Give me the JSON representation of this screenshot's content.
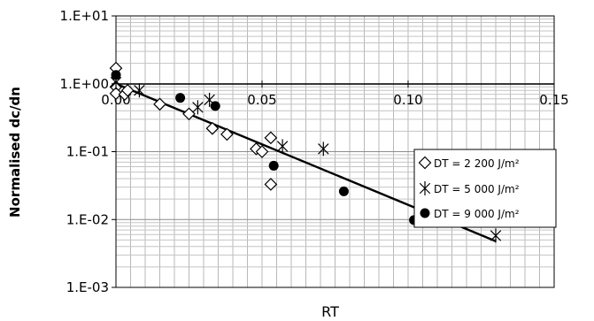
{
  "chart_data": {
    "type": "scatter",
    "xlabel": "RT",
    "ylabel": "Normalised dc/dn",
    "xlim": [
      0,
      0.15
    ],
    "ylim": [
      0.001,
      10
    ],
    "yscale": "log",
    "x_ticks": [
      "0.00",
      "0.05",
      "0.10",
      "0.15"
    ],
    "y_ticks": [
      "1.E+01",
      "1.E+00",
      "1.E-01",
      "1.E-02",
      "1.E-03"
    ],
    "grid": true,
    "legend_position": "right",
    "series": [
      {
        "name": "DT = 2 200 J/m²",
        "marker": "diamond",
        "color": "#000000",
        "points": [
          [
            0.0,
            1.7
          ],
          [
            0.0,
            0.9
          ],
          [
            0.0,
            0.72
          ],
          [
            0.003,
            0.7
          ],
          [
            0.004,
            0.8
          ],
          [
            0.015,
            0.5
          ],
          [
            0.025,
            0.36
          ],
          [
            0.033,
            0.22
          ],
          [
            0.038,
            0.18
          ],
          [
            0.048,
            0.11
          ],
          [
            0.05,
            0.1
          ],
          [
            0.053,
            0.16
          ],
          [
            0.053,
            0.033
          ]
        ]
      },
      {
        "name": "DT = 5 000 J/m²",
        "marker": "star",
        "color": "#000000",
        "points": [
          [
            0.0,
            1.05
          ],
          [
            0.008,
            0.8
          ],
          [
            0.028,
            0.45
          ],
          [
            0.032,
            0.58
          ],
          [
            0.057,
            0.12
          ],
          [
            0.071,
            0.11
          ],
          [
            0.13,
            0.0058
          ]
        ]
      },
      {
        "name": "DT = 9 000 J/m²",
        "marker": "circle",
        "color": "#000000",
        "points": [
          [
            0.0,
            1.35
          ],
          [
            0.022,
            0.62
          ],
          [
            0.034,
            0.47
          ],
          [
            0.054,
            0.062
          ],
          [
            0.078,
            0.026
          ],
          [
            0.102,
            0.0098
          ]
        ]
      }
    ],
    "trendline": {
      "x": [
        0.0,
        0.13
      ],
      "y": [
        1.0,
        0.0048
      ]
    }
  }
}
